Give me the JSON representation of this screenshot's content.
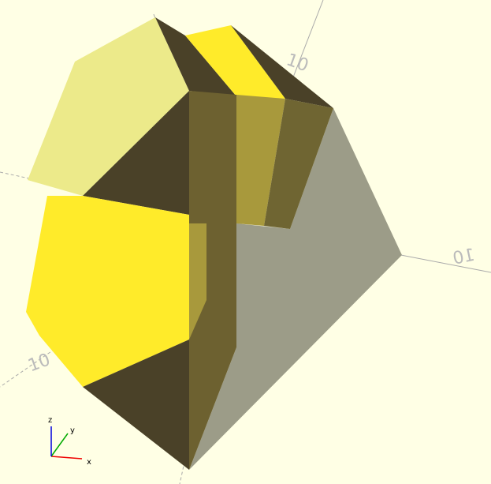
{
  "gizmo": {
    "x": "x",
    "y": "y",
    "z": "z"
  },
  "axis_labels": [
    "10",
    "10",
    "10"
  ]
}
